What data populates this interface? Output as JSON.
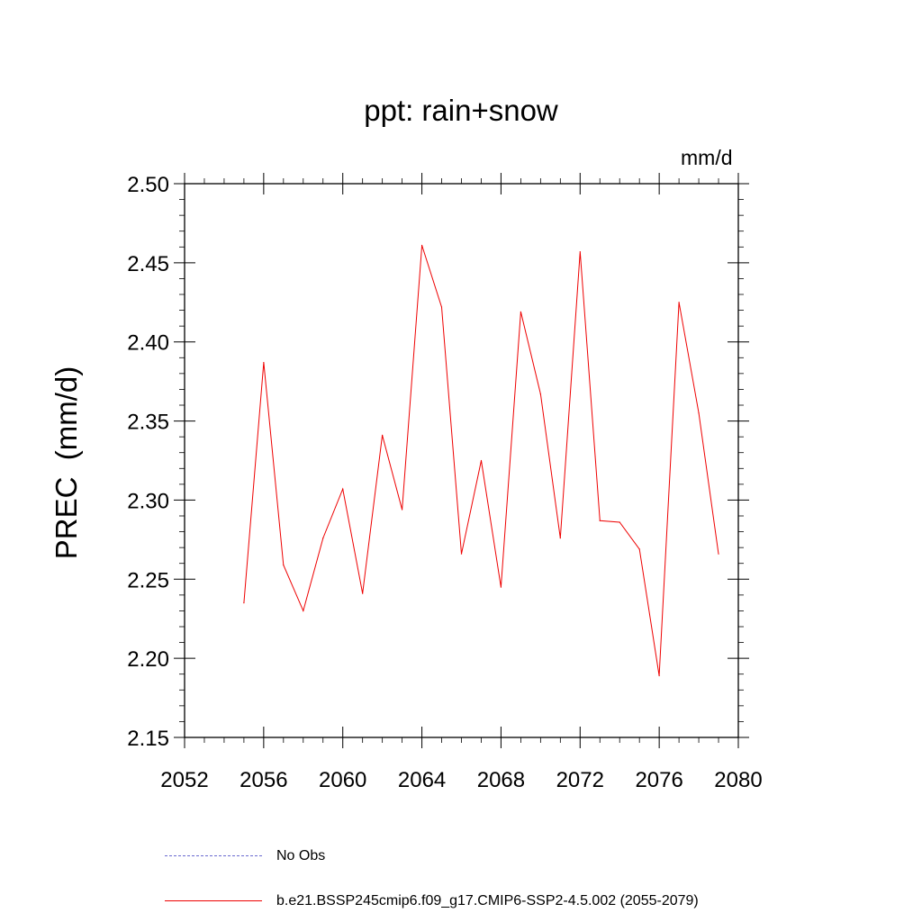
{
  "chart_data": {
    "type": "line",
    "title": "ppt: rain+snow",
    "units": "mm/d",
    "ylabel": "PREC  (mm/d)",
    "xlim": [
      2052,
      2080
    ],
    "ylim": [
      2.15,
      2.5
    ],
    "x_ticks": [
      "2052",
      "2056",
      "2060",
      "2064",
      "2068",
      "2072",
      "2076",
      "2080"
    ],
    "y_ticks": [
      "2.15",
      "2.20",
      "2.25",
      "2.30",
      "2.35",
      "2.40",
      "2.45",
      "2.50"
    ],
    "series": [
      {
        "name": "b.e21.BSSP245cmip6.f09_g17.CMIP6-SSP2-4.5.002 (2055-2079)",
        "color": "#ee0000",
        "x": [
          2055,
          2056,
          2057,
          2058,
          2059,
          2060,
          2061,
          2062,
          2063,
          2064,
          2065,
          2066,
          2067,
          2068,
          2069,
          2070,
          2071,
          2072,
          2073,
          2074,
          2075,
          2076,
          2077,
          2078,
          2079
        ],
        "values": [
          2.235,
          2.387,
          2.259,
          2.23,
          2.276,
          2.307,
          2.241,
          2.341,
          2.294,
          2.461,
          2.422,
          2.266,
          2.325,
          2.245,
          2.419,
          2.367,
          2.276,
          2.457,
          2.287,
          2.286,
          2.269,
          2.189,
          2.425,
          2.355,
          2.266
        ]
      }
    ],
    "legend": [
      {
        "label": "No Obs",
        "style": "dashed",
        "color": "#6a6ad0"
      },
      {
        "label": "b.e21.BSSP245cmip6.f09_g17.CMIP6-SSP2-4.5.002 (2055-2079)",
        "style": "solid",
        "color": "#ee0000"
      }
    ]
  }
}
